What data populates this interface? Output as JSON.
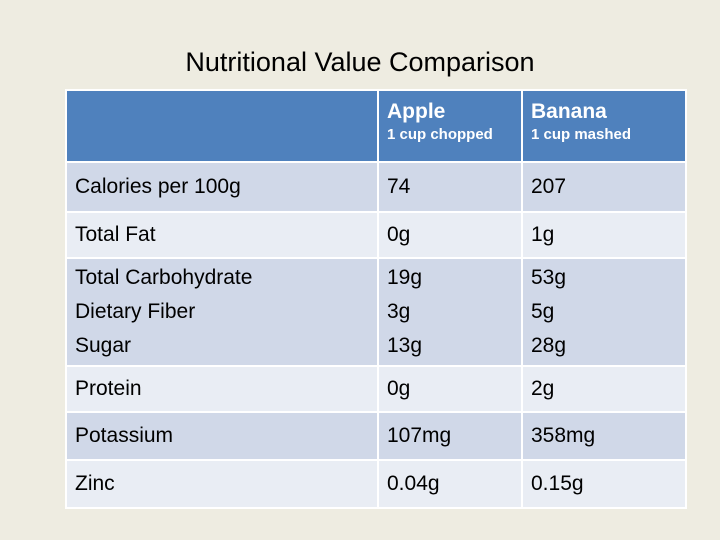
{
  "title": "Nutritional Value Comparison",
  "header": {
    "nutrient_label": "",
    "apple": {
      "name": "Apple",
      "measure": "1 cup chopped"
    },
    "banana": {
      "name": "Banana",
      "measure": "1 cup mashed"
    }
  },
  "rows": [
    {
      "nutrient": "Calories per 100g",
      "apple": "74",
      "banana": "207"
    },
    {
      "nutrient": "Total Fat",
      "apple": "0g",
      "banana": "1g"
    },
    {
      "nutrient": [
        "Total Carbohydrate",
        "Dietary Fiber",
        "Sugar"
      ],
      "apple": [
        "19g",
        "3g",
        "13g"
      ],
      "banana": [
        "53g",
        "5g",
        "28g"
      ]
    },
    {
      "nutrient": "Protein",
      "apple": "0g",
      "banana": "2g"
    },
    {
      "nutrient": "Potassium",
      "apple": "107mg",
      "banana": "358mg"
    },
    {
      "nutrient": "Zinc",
      "apple": "0.04g",
      "banana": "0.15g"
    }
  ],
  "colors": {
    "background": "#eeece1",
    "header_fill": "#4f81bd",
    "row_dark": "#d0d8e8",
    "row_light": "#e9edf4"
  }
}
